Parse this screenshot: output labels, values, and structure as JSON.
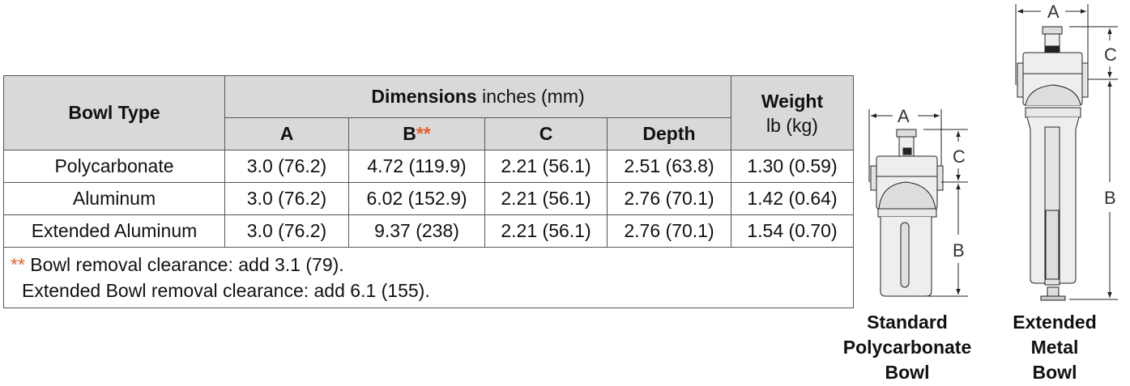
{
  "table": {
    "header": {
      "bowl_type": "Bowl Type",
      "dimensions_bold": "Dimensions",
      "dimensions_unit": " inches (mm)",
      "weight": "Weight",
      "weight_unit": "lb (kg)",
      "cols": [
        "A",
        "B",
        "C",
        "Depth"
      ],
      "b_marker": "**"
    },
    "rows": [
      {
        "type": "Polycarbonate",
        "a": "3.0 (76.2)",
        "b": "4.72 (119.9)",
        "c": "2.21 (56.1)",
        "depth": "2.51 (63.8)",
        "weight": "1.30 (0.59)"
      },
      {
        "type": "Aluminum",
        "a": "3.0 (76.2)",
        "b": "6.02 (152.9)",
        "c": "2.21 (56.1)",
        "depth": "2.76 (70.1)",
        "weight": "1.42 (0.64)"
      },
      {
        "type": "Extended Aluminum",
        "a": "3.0 (76.2)",
        "b": "9.37 (238)",
        "c": "2.21 (56.1)",
        "depth": "2.76 (70.1)",
        "weight": "1.54 (0.70)"
      }
    ],
    "footnote_marker": "**",
    "footnote1": " Bowl removal clearance: add 3.1 (79).",
    "footnote2": "Extended Bowl removal clearance: add 6.1 (155)."
  },
  "diagrams": {
    "standard": {
      "caption": [
        "Standard",
        "Polycarbonate",
        "Bowl"
      ],
      "labels": {
        "a": "A",
        "b": "B",
        "c": "C"
      }
    },
    "extended": {
      "caption": [
        "Extended",
        "Metal",
        "Bowl"
      ],
      "labels": {
        "a": "A",
        "b": "B",
        "c": "C"
      }
    }
  },
  "colors": {
    "footnote_marker": "#e8602c",
    "header_bg": "#d9d9d9"
  }
}
